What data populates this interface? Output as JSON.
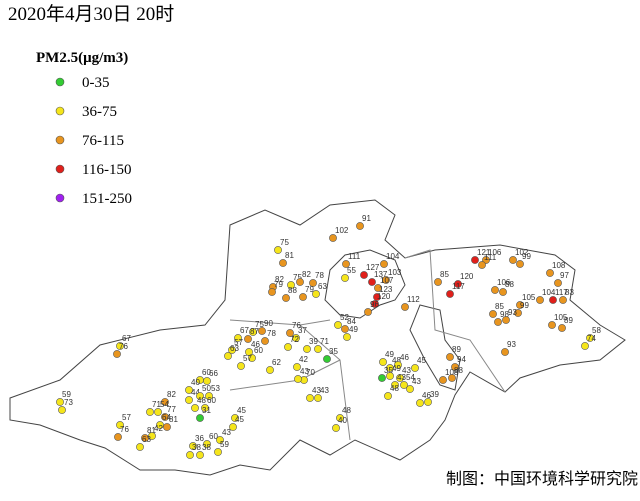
{
  "title": "2020年4月30日  20时",
  "legend": {
    "title": "PM2.5(μg/m3)",
    "items": [
      {
        "label": "0-35",
        "color": "#33cc33"
      },
      {
        "label": "36-75",
        "color": "#f5e51b"
      },
      {
        "label": "76-115",
        "color": "#e8951f"
      },
      {
        "label": "116-150",
        "color": "#e0201b"
      },
      {
        "label": "151-250",
        "color": "#a020f0"
      }
    ]
  },
  "stations": [
    91,
    102,
    75,
    81,
    111,
    104,
    127,
    55,
    137,
    103,
    107,
    123,
    120,
    96,
    112,
    82,
    75,
    82,
    78,
    79,
    88,
    79,
    63,
    52,
    84,
    49,
    75,
    67,
    87,
    90,
    78,
    57,
    63,
    76,
    37,
    72,
    39,
    71,
    46,
    60,
    57,
    35,
    62,
    42,
    70,
    43,
    67,
    76,
    43,
    43,
    48,
    40,
    60,
    66,
    40,
    44,
    50,
    53,
    48,
    60,
    31,
    82,
    71,
    54,
    77,
    64,
    81,
    57,
    76,
    81,
    42,
    63,
    45,
    45,
    59,
    73,
    36,
    60,
    43,
    38,
    38,
    59,
    49,
    48,
    46,
    45,
    35,
    49,
    43,
    43,
    54,
    43,
    48,
    46,
    39,
    89,
    94,
    108,
    88,
    93,
    121,
    106,
    111,
    102,
    99,
    108,
    97,
    85,
    120,
    117,
    106,
    88,
    105,
    99,
    104,
    117,
    83,
    85,
    98,
    93,
    105,
    89,
    58,
    74
  ],
  "credit": "制图：中国环境科学研究院"
}
